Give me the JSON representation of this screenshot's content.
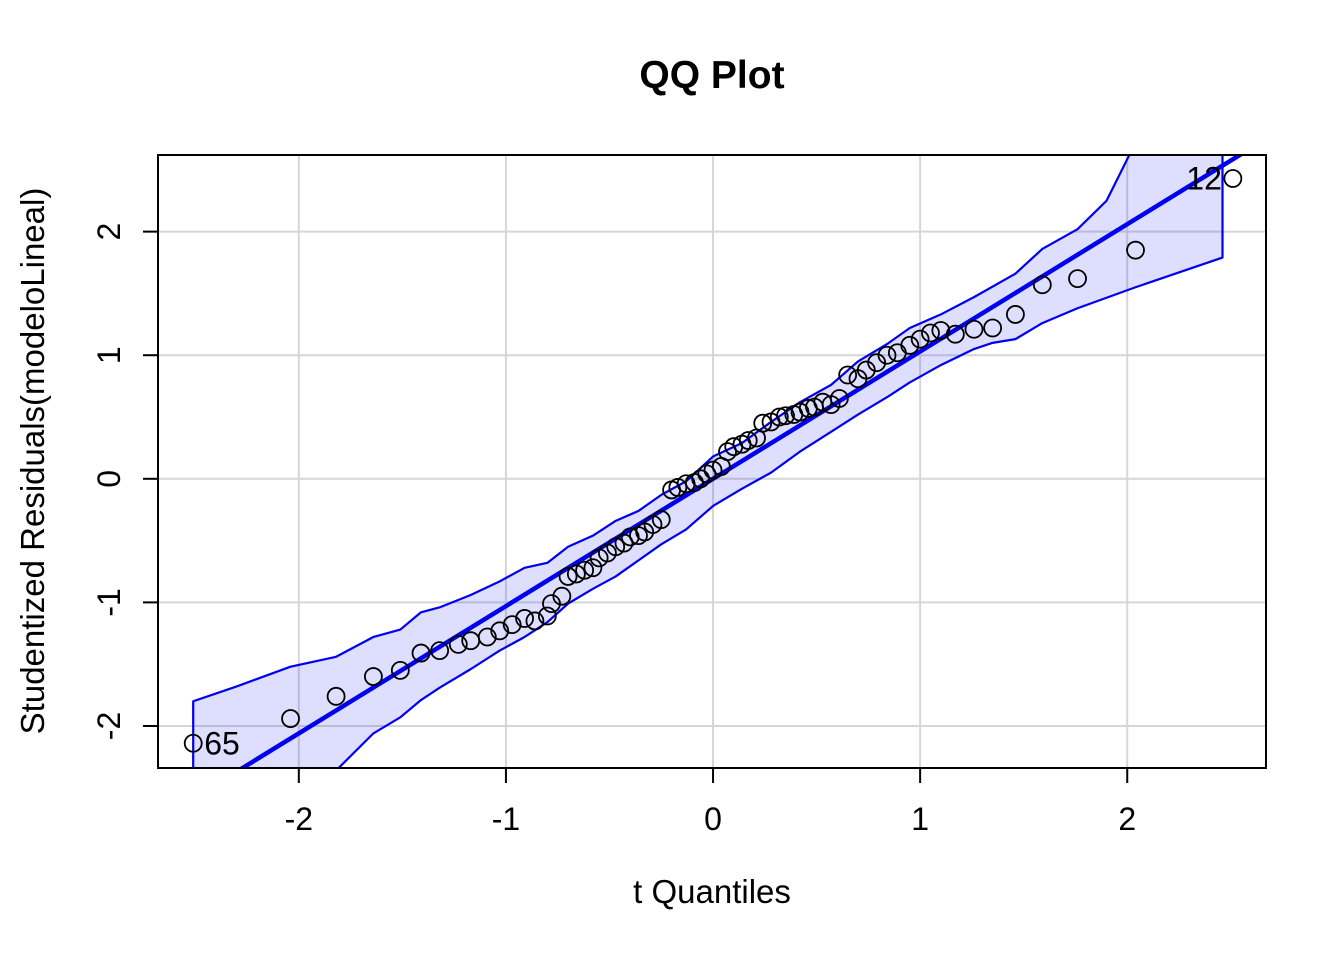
{
  "chart_data": {
    "type": "scatter",
    "title": "QQ Plot",
    "xlabel": "t Quantiles",
    "ylabel": "Studentized Residuals(modeloLineal)",
    "xlim": [
      -2.68,
      2.67
    ],
    "ylim": [
      -2.34,
      2.62
    ],
    "x_ticks": [
      -2,
      -1,
      0,
      1,
      2
    ],
    "y_ticks": [
      -2,
      -1,
      0,
      1,
      2
    ],
    "grid": true,
    "legend": "none",
    "colors": {
      "line": "#0000EE",
      "envelope_fill": "rgba(0,0,255,0.13)",
      "envelope_stroke": "#0000EE",
      "grid": "#D6D6D6",
      "point_stroke": "#000000",
      "text": "#000000",
      "box": "#000000",
      "background": "#FFFFFF"
    },
    "reference_line": {
      "slope": 1.03,
      "intercept": 0.0
    },
    "envelope": {
      "upper": [
        [
          -2.51,
          -1.8
        ],
        [
          -2.3,
          -1.68
        ],
        [
          -2.04,
          -1.52
        ],
        [
          -1.82,
          -1.44
        ],
        [
          -1.64,
          -1.28
        ],
        [
          -1.51,
          -1.22
        ],
        [
          -1.41,
          -1.08
        ],
        [
          -1.32,
          -1.04
        ],
        [
          -1.17,
          -0.94
        ],
        [
          -1.03,
          -0.83
        ],
        [
          -0.91,
          -0.72
        ],
        [
          -0.8,
          -0.68
        ],
        [
          -0.7,
          -0.55
        ],
        [
          -0.58,
          -0.46
        ],
        [
          -0.47,
          -0.34
        ],
        [
          -0.36,
          -0.26
        ],
        [
          -0.25,
          -0.13
        ],
        [
          -0.13,
          -0.02
        ],
        [
          0.0,
          0.18
        ],
        [
          0.14,
          0.29
        ],
        [
          0.28,
          0.46
        ],
        [
          0.42,
          0.62
        ],
        [
          0.57,
          0.76
        ],
        [
          0.7,
          0.95
        ],
        [
          0.84,
          1.09
        ],
        [
          0.95,
          1.22
        ],
        [
          1.1,
          1.33
        ],
        [
          1.26,
          1.47
        ],
        [
          1.46,
          1.66
        ],
        [
          1.59,
          1.86
        ],
        [
          1.76,
          2.02
        ],
        [
          1.9,
          2.25
        ],
        [
          2.01,
          2.62
        ],
        [
          2.12,
          2.88
        ],
        [
          2.46,
          3.1
        ]
      ],
      "lower": [
        [
          -2.51,
          -3.1
        ],
        [
          -2.2,
          -2.72
        ],
        [
          -1.95,
          -2.5
        ],
        [
          -1.82,
          -2.36
        ],
        [
          -1.64,
          -2.06
        ],
        [
          -1.51,
          -1.93
        ],
        [
          -1.41,
          -1.79
        ],
        [
          -1.32,
          -1.69
        ],
        [
          -1.17,
          -1.54
        ],
        [
          -1.03,
          -1.39
        ],
        [
          -0.91,
          -1.28
        ],
        [
          -0.8,
          -1.16
        ],
        [
          -0.7,
          -1.01
        ],
        [
          -0.58,
          -0.89
        ],
        [
          -0.47,
          -0.79
        ],
        [
          -0.36,
          -0.66
        ],
        [
          -0.25,
          -0.53
        ],
        [
          -0.13,
          -0.41
        ],
        [
          0.0,
          -0.22
        ],
        [
          0.14,
          -0.08
        ],
        [
          0.28,
          0.05
        ],
        [
          0.42,
          0.22
        ],
        [
          0.57,
          0.38
        ],
        [
          0.7,
          0.52
        ],
        [
          0.84,
          0.66
        ],
        [
          0.95,
          0.78
        ],
        [
          1.1,
          0.92
        ],
        [
          1.26,
          1.05
        ],
        [
          1.35,
          1.1
        ],
        [
          1.46,
          1.13
        ],
        [
          1.59,
          1.26
        ],
        [
          1.76,
          1.38
        ],
        [
          2.04,
          1.55
        ],
        [
          2.46,
          1.79
        ]
      ]
    },
    "points": [
      [
        -2.51,
        -2.14
      ],
      [
        -2.04,
        -1.94
      ],
      [
        -1.82,
        -1.76
      ],
      [
        -1.64,
        -1.6
      ],
      [
        -1.51,
        -1.55
      ],
      [
        -1.41,
        -1.41
      ],
      [
        -1.32,
        -1.39
      ],
      [
        -1.23,
        -1.34
      ],
      [
        -1.17,
        -1.31
      ],
      [
        -1.09,
        -1.28
      ],
      [
        -1.03,
        -1.23
      ],
      [
        -0.97,
        -1.18
      ],
      [
        -0.91,
        -1.13
      ],
      [
        -0.86,
        -1.15
      ],
      [
        -0.8,
        -1.11
      ],
      [
        -0.78,
        -1.01
      ],
      [
        -0.73,
        -0.95
      ],
      [
        -0.7,
        -0.79
      ],
      [
        -0.66,
        -0.77
      ],
      [
        -0.62,
        -0.74
      ],
      [
        -0.58,
        -0.72
      ],
      [
        -0.55,
        -0.64
      ],
      [
        -0.51,
        -0.6
      ],
      [
        -0.47,
        -0.55
      ],
      [
        -0.43,
        -0.52
      ],
      [
        -0.4,
        -0.47
      ],
      [
        -0.36,
        -0.46
      ],
      [
        -0.33,
        -0.43
      ],
      [
        -0.29,
        -0.37
      ],
      [
        -0.25,
        -0.33
      ],
      [
        -0.2,
        -0.09
      ],
      [
        -0.17,
        -0.07
      ],
      [
        -0.13,
        -0.04
      ],
      [
        -0.09,
        -0.03
      ],
      [
        -0.06,
        0.0
      ],
      [
        -0.03,
        0.04
      ],
      [
        0.0,
        0.07
      ],
      [
        0.04,
        0.1
      ],
      [
        0.07,
        0.22
      ],
      [
        0.1,
        0.26
      ],
      [
        0.14,
        0.28
      ],
      [
        0.17,
        0.31
      ],
      [
        0.21,
        0.33
      ],
      [
        0.24,
        0.45
      ],
      [
        0.28,
        0.46
      ],
      [
        0.32,
        0.5
      ],
      [
        0.35,
        0.51
      ],
      [
        0.39,
        0.52
      ],
      [
        0.42,
        0.54
      ],
      [
        0.46,
        0.57
      ],
      [
        0.49,
        0.58
      ],
      [
        0.53,
        0.62
      ],
      [
        0.57,
        0.6
      ],
      [
        0.61,
        0.65
      ],
      [
        0.65,
        0.84
      ],
      [
        0.7,
        0.81
      ],
      [
        0.74,
        0.88
      ],
      [
        0.79,
        0.94
      ],
      [
        0.84,
        1.0
      ],
      [
        0.89,
        1.02
      ],
      [
        0.95,
        1.08
      ],
      [
        1.0,
        1.13
      ],
      [
        1.05,
        1.18
      ],
      [
        1.1,
        1.2
      ],
      [
        1.17,
        1.17
      ],
      [
        1.26,
        1.21
      ],
      [
        1.35,
        1.22
      ],
      [
        1.46,
        1.33
      ],
      [
        1.59,
        1.57
      ],
      [
        1.76,
        1.62
      ],
      [
        2.04,
        1.85
      ],
      [
        2.51,
        2.43
      ]
    ],
    "labeled_points": [
      {
        "label": "65",
        "x": -2.51,
        "y": -2.14,
        "side": "right"
      },
      {
        "label": "12",
        "x": 2.51,
        "y": 2.43,
        "side": "left"
      }
    ]
  }
}
